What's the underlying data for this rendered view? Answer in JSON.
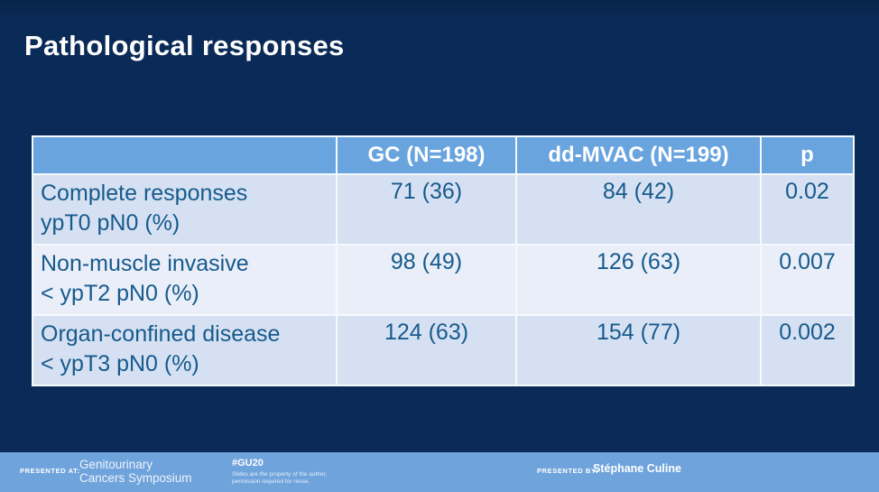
{
  "slide": {
    "title": "Pathological responses"
  },
  "table": {
    "columns": [
      "",
      "GC (N=198)",
      "dd-MVAC (N=199)",
      "p"
    ],
    "rows": [
      {
        "label": [
          "Complete responses",
          "ypT0 pN0 (%)"
        ],
        "gc": "71 (36)",
        "ddmvac": "84 (42)",
        "p": "0.02"
      },
      {
        "label": [
          "Non-muscle invasive",
          "< ypT2 pN0 (%)"
        ],
        "gc": "98 (49)",
        "ddmvac": "126 (63)",
        "p": "0.007"
      },
      {
        "label": [
          "Organ-confined disease",
          "< ypT3 pN0 (%)"
        ],
        "gc": "124 (63)",
        "ddmvac": "154 (77)",
        "p": "0.002"
      }
    ]
  },
  "footer": {
    "presented_at_label": "PRESENTED AT:",
    "event_name_line1": "Genitourinary",
    "event_name_line2": "Cancers Symposium",
    "hashtag": "#GU20",
    "disclaimer_line1": "Slides are the property of the author,",
    "disclaimer_line2": "permission required for reuse.",
    "presented_by_label": "PRESENTED BY:",
    "presenter_name": "Stéphane Culine"
  },
  "colors": {
    "background": "#0A2A57",
    "table_header_bg": "#69A4DF",
    "row_odd_bg": "#D5E1F2",
    "row_even_bg": "#E9EEF9",
    "table_border": "#F6F9FD",
    "body_text": "#175A8C",
    "header_text": "#FFFFFF",
    "footer_bg": "#6FA3DC"
  }
}
